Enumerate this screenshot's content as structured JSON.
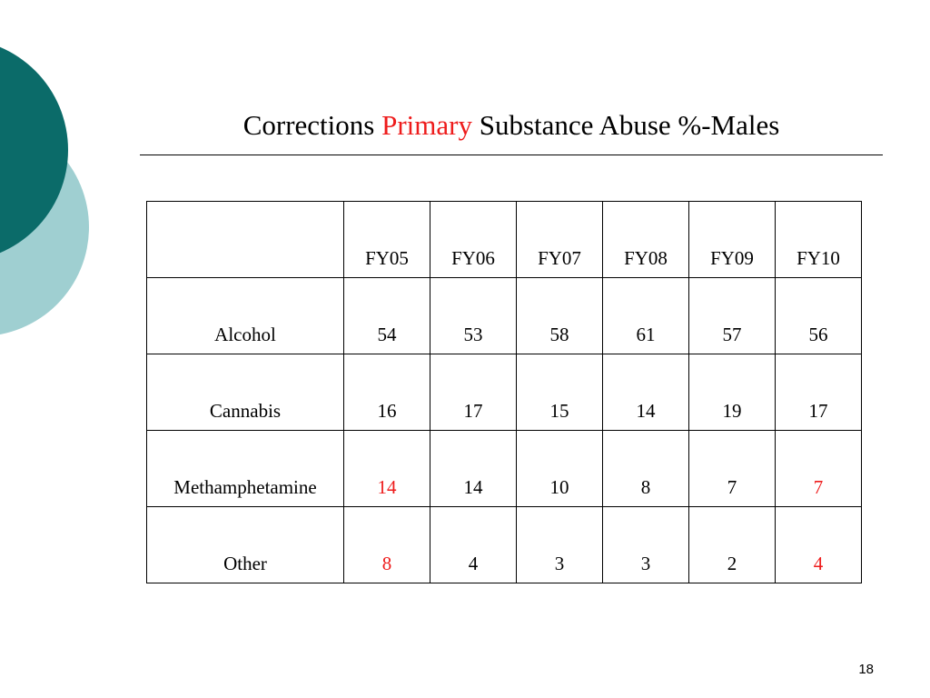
{
  "slide": {
    "title_parts": [
      "Corrections ",
      "Primary",
      " Substance Abuse %-Males"
    ],
    "page_number": "18"
  },
  "colors": {
    "highlight": "#ee1c1c",
    "circle_dark": "#0b6b69",
    "circle_light": "#9fcfd1"
  },
  "table": {
    "header": [
      "",
      "FY05",
      "FY06",
      "FY07",
      "FY08",
      "FY09",
      "FY10"
    ],
    "rows": [
      {
        "label": "Alcohol",
        "values": [
          "54",
          "53",
          "58",
          "61",
          "57",
          "56"
        ],
        "red": [
          false,
          false,
          false,
          false,
          false,
          false
        ]
      },
      {
        "label": "Cannabis",
        "values": [
          "16",
          "17",
          "15",
          "14",
          "19",
          "17"
        ],
        "red": [
          false,
          false,
          false,
          false,
          false,
          false
        ]
      },
      {
        "label": "Methamphetamine",
        "values": [
          "14",
          "14",
          "10",
          "8",
          "7",
          "7"
        ],
        "red": [
          true,
          false,
          false,
          false,
          false,
          true
        ]
      },
      {
        "label": "Other",
        "values": [
          "8",
          "4",
          "3",
          "3",
          "2",
          "4"
        ],
        "red": [
          true,
          false,
          false,
          false,
          false,
          true
        ]
      }
    ]
  }
}
